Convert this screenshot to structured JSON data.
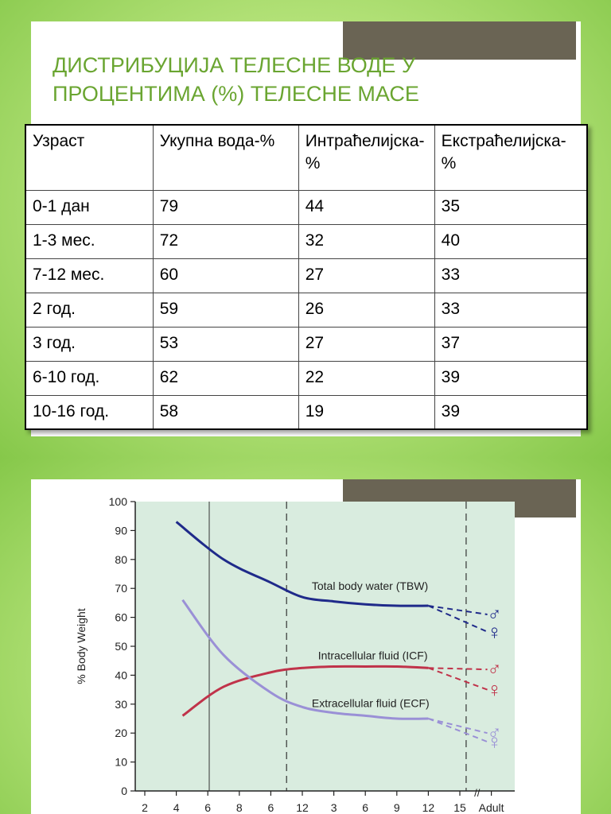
{
  "slide1": {
    "title": "ДИСТРИБУЦИЈА ТЕЛЕСНЕ ВОДЕ У ПРОЦЕНТИМА (%) ТЕЛЕСНЕ МАСЕ",
    "table": {
      "headers": [
        "Узраст",
        "Укупна вода-%",
        "Интраћелијска- %",
        "Екстраћелијска-%"
      ],
      "rows": [
        [
          "0-1 дан",
          "79",
          "44",
          "35"
        ],
        [
          "1-3 мес.",
          "72",
          "32",
          "40"
        ],
        [
          "7-12 мес.",
          "60",
          "27",
          "33"
        ],
        [
          "2 год.",
          "59",
          "26",
          "33"
        ],
        [
          "3 год.",
          "53",
          "27",
          "37"
        ],
        [
          "6-10 год.",
          "62",
          "22",
          "39"
        ],
        [
          "10-16 год.",
          "58",
          "19",
          "39"
        ]
      ]
    }
  },
  "colors": {
    "accent_green": "#6aa531",
    "tab_brown": "#6a6454",
    "plot_bg": "#d9ecdf",
    "tbw": "#1f2a8a",
    "icf": "#c0334a",
    "ecf": "#9a90d6"
  },
  "chart_data": {
    "type": "line",
    "ylabel": "% Body Weight",
    "ylim": [
      0,
      100
    ],
    "yticks": [
      "0",
      "10",
      "20",
      "30",
      "40",
      "50",
      "60",
      "70",
      "80",
      "90",
      "100"
    ],
    "xticks": [
      "2",
      "4",
      "6",
      "8",
      "6",
      "12",
      "3",
      "6",
      "9",
      "12",
      "15",
      "Adult"
    ],
    "x_index_note": "x uses tick-index positions 0..11 (2,4,6,8 | 6,12 | 3,6,9,12,15 | Adult)",
    "series": [
      {
        "name": "Total body water (TBW)",
        "x": [
          1,
          2.5,
          4,
          5,
          6,
          7,
          8,
          9
        ],
        "y": [
          93,
          80,
          72,
          67,
          65.5,
          64.5,
          64,
          64
        ]
      },
      {
        "name": "Intracellular fluid (ICF)",
        "x": [
          1.2,
          2.5,
          4,
          5,
          6,
          7,
          8,
          9
        ],
        "y": [
          26,
          36,
          41,
          42.5,
          43,
          43,
          43,
          42.5
        ]
      },
      {
        "name": "Extracellular fluid (ECF)",
        "x": [
          1.2,
          2.5,
          4,
          5,
          6,
          7,
          8,
          9
        ],
        "y": [
          66,
          47,
          34,
          29,
          27,
          26,
          25,
          25
        ]
      }
    ],
    "adult_projections": [
      {
        "series": "TBW",
        "male": 61,
        "female": 55
      },
      {
        "series": "ICF",
        "male": 42,
        "female": 35
      },
      {
        "series": "ECF",
        "male": 20,
        "female": 17
      }
    ]
  }
}
